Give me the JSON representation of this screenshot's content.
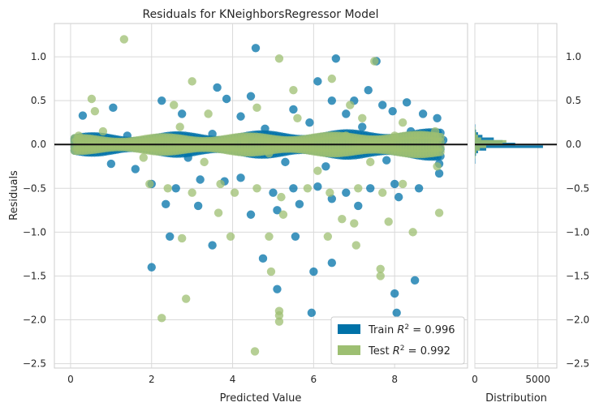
{
  "chart_data": [
    {
      "type": "scatter",
      "title": "Residuals for KNeighborsRegressor Model",
      "xlabel": "Predicted Value",
      "ylabel": "Residuals",
      "xlim": [
        -0.4,
        9.8
      ],
      "ylim": [
        -2.55,
        1.38
      ],
      "xticks": [
        0,
        2,
        4,
        6,
        8
      ],
      "yticks": [
        1.0,
        0.5,
        0.0,
        -0.5,
        -1.0,
        -1.5,
        -2.0,
        -2.5
      ],
      "ytick_labels": [
        "1.0",
        "0.5",
        "0.0",
        "−0.5",
        "−1.0",
        "−1.5",
        "−2.0",
        "−2.5"
      ],
      "grid": true,
      "reference_line": 0,
      "legend_position": "lower-right",
      "series": [
        {
          "name": "Train R² = 0.996",
          "legend_prefix": "Train",
          "legend_value": "0.996",
          "color": "#0072a8",
          "points": [
            [
              4.57,
              1.1
            ],
            [
              6.55,
              0.98
            ],
            [
              7.55,
              0.95
            ],
            [
              3.62,
              0.65
            ],
            [
              7.35,
              0.62
            ],
            [
              6.1,
              0.72
            ],
            [
              2.25,
              0.5
            ],
            [
              3.85,
              0.52
            ],
            [
              4.45,
              0.55
            ],
            [
              5.5,
              0.4
            ],
            [
              6.45,
              0.5
            ],
            [
              7.0,
              0.5
            ],
            [
              7.7,
              0.45
            ],
            [
              8.3,
              0.48
            ],
            [
              8.7,
              0.35
            ],
            [
              9.05,
              0.3
            ],
            [
              1.05,
              0.42
            ],
            [
              0.3,
              0.33
            ],
            [
              2.75,
              0.35
            ],
            [
              4.2,
              0.32
            ],
            [
              6.8,
              0.35
            ],
            [
              7.95,
              0.38
            ],
            [
              1.0,
              -0.22
            ],
            [
              1.6,
              -0.28
            ],
            [
              2.0,
              -0.45
            ],
            [
              2.6,
              -0.5
            ],
            [
              3.2,
              -0.4
            ],
            [
              3.8,
              -0.42
            ],
            [
              4.2,
              -0.38
            ],
            [
              5.0,
              -0.55
            ],
            [
              5.5,
              -0.5
            ],
            [
              6.1,
              -0.48
            ],
            [
              6.8,
              -0.55
            ],
            [
              7.4,
              -0.5
            ],
            [
              8.0,
              -0.45
            ],
            [
              8.6,
              -0.5
            ],
            [
              9.1,
              -0.33
            ],
            [
              9.1,
              -0.22
            ],
            [
              2.35,
              -0.68
            ],
            [
              3.15,
              -0.7
            ],
            [
              4.45,
              -0.8
            ],
            [
              5.1,
              -0.75
            ],
            [
              5.65,
              -0.68
            ],
            [
              6.45,
              -0.62
            ],
            [
              7.1,
              -0.7
            ],
            [
              8.1,
              -0.6
            ],
            [
              2.45,
              -1.05
            ],
            [
              3.5,
              -1.15
            ],
            [
              5.55,
              -1.05
            ],
            [
              4.75,
              -1.3
            ],
            [
              6.45,
              -1.35
            ],
            [
              2.0,
              -1.4
            ],
            [
              6.0,
              -1.45
            ],
            [
              8.0,
              -1.7
            ],
            [
              8.5,
              -1.55
            ],
            [
              5.1,
              -1.65
            ],
            [
              5.95,
              -1.92
            ],
            [
              8.05,
              -1.92
            ],
            [
              0.1,
              0.05
            ],
            [
              0.5,
              -0.08
            ],
            [
              1.4,
              0.1
            ],
            [
              2.9,
              -0.15
            ],
            [
              3.5,
              0.12
            ],
            [
              4.8,
              0.18
            ],
            [
              5.3,
              -0.2
            ],
            [
              5.9,
              0.25
            ],
            [
              6.3,
              -0.25
            ],
            [
              7.2,
              0.2
            ],
            [
              7.8,
              -0.18
            ],
            [
              8.4,
              0.15
            ],
            [
              8.9,
              -0.1
            ],
            [
              9.2,
              0.05
            ]
          ]
        },
        {
          "name": "Test R² = 0.992",
          "legend_prefix": "Test",
          "legend_value": "0.992",
          "color": "#9dbf72",
          "points": [
            [
              1.32,
              1.2
            ],
            [
              5.15,
              0.98
            ],
            [
              7.5,
              0.95
            ],
            [
              3.0,
              0.72
            ],
            [
              6.45,
              0.75
            ],
            [
              5.5,
              0.62
            ],
            [
              0.52,
              0.52
            ],
            [
              0.6,
              0.38
            ],
            [
              2.55,
              0.45
            ],
            [
              3.4,
              0.35
            ],
            [
              4.6,
              0.42
            ],
            [
              6.9,
              0.45
            ],
            [
              7.2,
              0.3
            ],
            [
              8.2,
              0.25
            ],
            [
              9.0,
              0.15
            ],
            [
              1.95,
              -0.45
            ],
            [
              2.4,
              -0.5
            ],
            [
              3.0,
              -0.55
            ],
            [
              3.7,
              -0.45
            ],
            [
              4.05,
              -0.55
            ],
            [
              4.6,
              -0.5
            ],
            [
              5.2,
              -0.6
            ],
            [
              5.85,
              -0.5
            ],
            [
              6.4,
              -0.55
            ],
            [
              7.1,
              -0.5
            ],
            [
              7.7,
              -0.55
            ],
            [
              8.2,
              -0.45
            ],
            [
              9.05,
              -0.25
            ],
            [
              9.1,
              -0.78
            ],
            [
              3.65,
              -0.78
            ],
            [
              5.25,
              -0.8
            ],
            [
              6.7,
              -0.85
            ],
            [
              7.0,
              -0.9
            ],
            [
              7.85,
              -0.88
            ],
            [
              2.75,
              -1.07
            ],
            [
              3.95,
              -1.05
            ],
            [
              4.9,
              -1.05
            ],
            [
              6.35,
              -1.05
            ],
            [
              7.05,
              -1.15
            ],
            [
              8.45,
              -1.0
            ],
            [
              4.95,
              -1.45
            ],
            [
              7.65,
              -1.42
            ],
            [
              7.65,
              -1.5
            ],
            [
              2.85,
              -1.76
            ],
            [
              2.25,
              -1.98
            ],
            [
              5.15,
              -1.9
            ],
            [
              5.15,
              -1.95
            ],
            [
              5.15,
              -2.02
            ],
            [
              4.55,
              -2.36
            ],
            [
              0.2,
              0.1
            ],
            [
              0.8,
              0.15
            ],
            [
              1.8,
              -0.15
            ],
            [
              2.7,
              0.2
            ],
            [
              3.3,
              -0.2
            ],
            [
              4.3,
              0.05
            ],
            [
              4.9,
              -0.1
            ],
            [
              5.6,
              0.3
            ],
            [
              6.1,
              -0.3
            ],
            [
              6.8,
              0.1
            ],
            [
              7.4,
              -0.2
            ],
            [
              8.0,
              0.1
            ]
          ]
        }
      ]
    },
    {
      "type": "bar",
      "orientation": "horizontal",
      "xlabel": "Distribution",
      "ylabel": "",
      "xlim": [
        0,
        6500
      ],
      "xticks": [
        0,
        5000
      ],
      "ylim": [
        -2.55,
        1.38
      ],
      "yticks": [
        1.0,
        0.5,
        0.0,
        -0.5,
        -1.0,
        -1.5,
        -2.0,
        -2.5
      ],
      "ytick_labels": [
        "1.0",
        "0.5",
        "0.0",
        "−0.5",
        "−1.0",
        "−1.5",
        "−2.0",
        "−2.5"
      ],
      "bin_width": 0.03,
      "series": [
        {
          "name": "Train",
          "color": "#0072a8",
          "bins": [
            [
              0.2,
              20
            ],
            [
              0.17,
              40
            ],
            [
              0.14,
              90
            ],
            [
              0.11,
              250
            ],
            [
              0.08,
              600
            ],
            [
              0.05,
              1500
            ],
            [
              0.02,
              2200
            ],
            [
              -0.01,
              3200
            ],
            [
              -0.04,
              5400
            ],
            [
              -0.07,
              900
            ],
            [
              -0.1,
              250
            ],
            [
              -0.13,
              90
            ],
            [
              -0.16,
              40
            ],
            [
              -0.19,
              20
            ],
            [
              -0.22,
              10
            ]
          ]
        },
        {
          "name": "Test",
          "color": "#9dbf72",
          "bins": [
            [
              0.17,
              15
            ],
            [
              0.14,
              40
            ],
            [
              0.11,
              100
            ],
            [
              0.08,
              250
            ],
            [
              0.05,
              500
            ],
            [
              0.02,
              2500
            ],
            [
              -0.01,
              2200
            ],
            [
              -0.04,
              900
            ],
            [
              -0.07,
              400
            ],
            [
              -0.1,
              120
            ],
            [
              -0.13,
              40
            ],
            [
              -0.16,
              15
            ]
          ]
        }
      ]
    }
  ]
}
